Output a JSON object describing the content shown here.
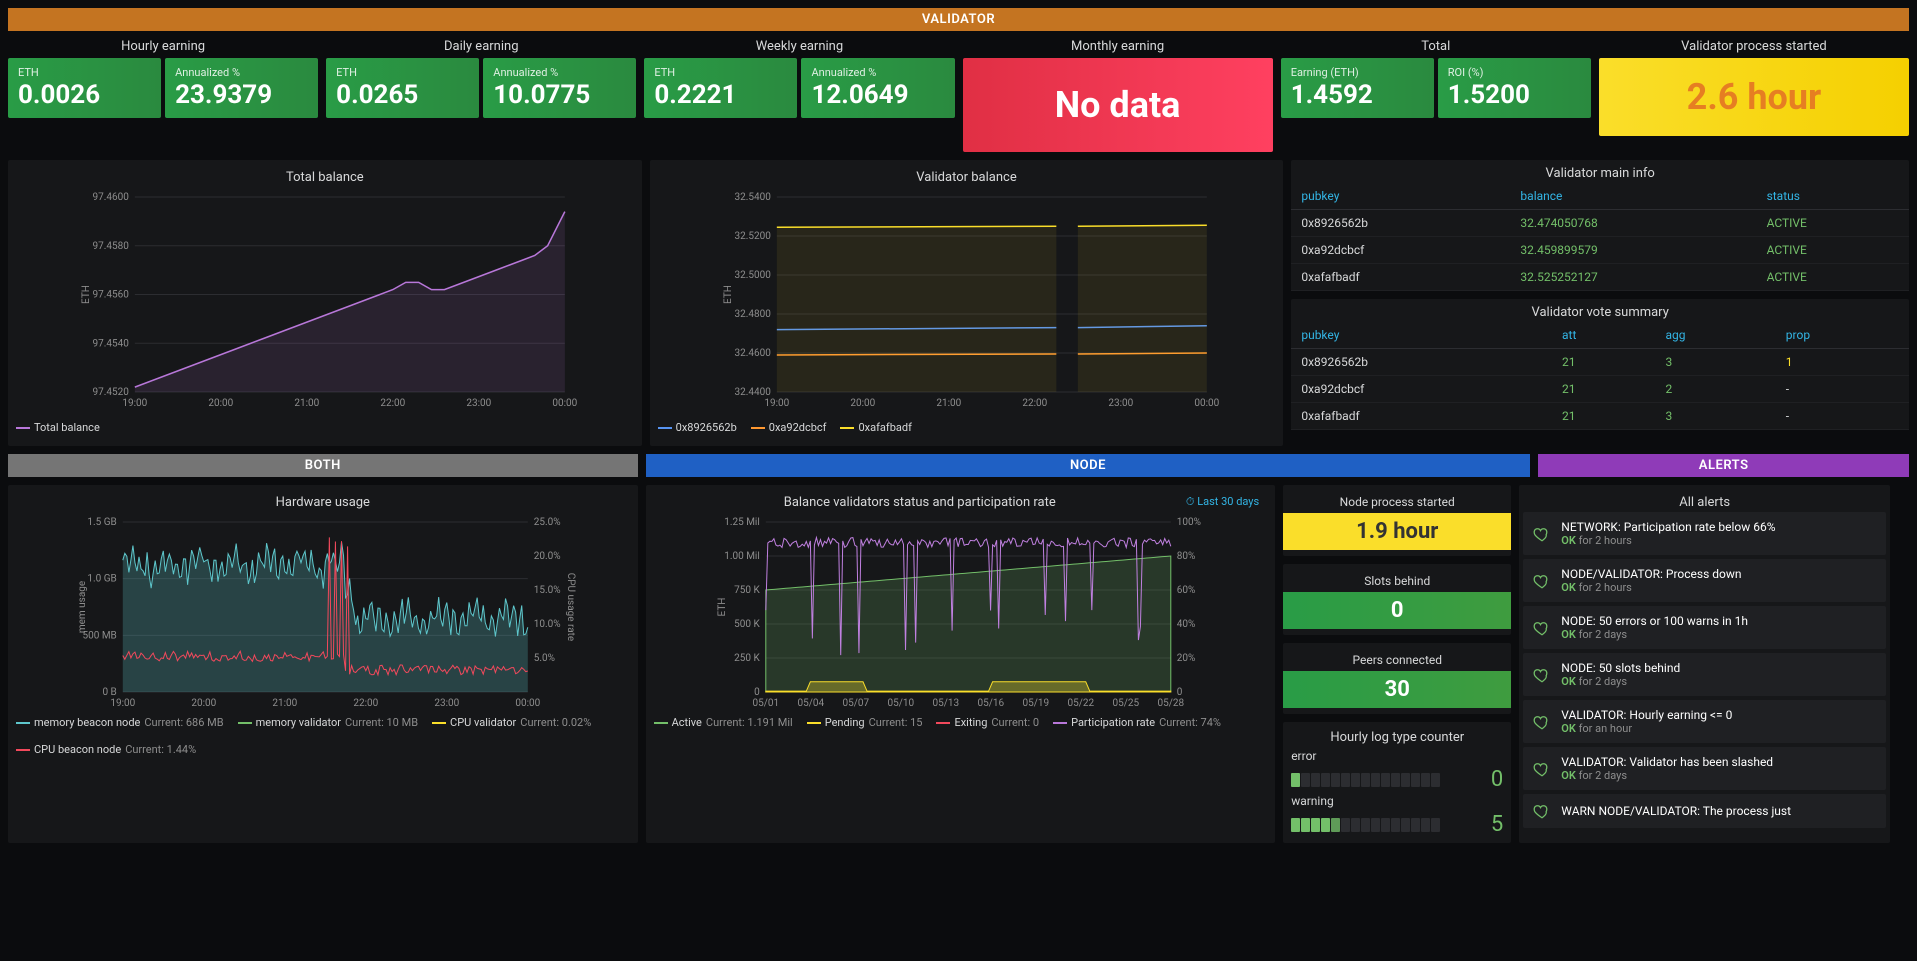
{
  "colors": {
    "green": "#299c46",
    "green_grad_end": "#5cb85c",
    "yellow": "#fade2a",
    "red": "#e02f44",
    "orange_header": "#c47421",
    "gray_header": "#757575",
    "blue_header": "#1f60c4",
    "purple_header": "#8f3bb8",
    "line_purple": "#b877d9",
    "line_blue": "#5794f2",
    "line_orange": "#ff9830",
    "line_yellow": "#fade2a",
    "line_cyan": "#5ec7cc",
    "line_pink": "#f2495c",
    "line_green": "#73bf69",
    "line_yellow2": "#fade2a",
    "grid": "#2c2d31",
    "text_muted": "#8e8e8e"
  },
  "sections": {
    "validator": "VALIDATOR",
    "both": "BOTH",
    "node": "NODE",
    "alerts": "ALERTS"
  },
  "earnings": {
    "hourly": {
      "title": "Hourly earning",
      "eth_label": "ETH",
      "eth": "0.0026",
      "ann_label": "Annualized %",
      "ann": "23.9379"
    },
    "daily": {
      "title": "Daily earning",
      "eth_label": "ETH",
      "eth": "0.0265",
      "ann_label": "Annualized %",
      "ann": "10.0775"
    },
    "weekly": {
      "title": "Weekly earning",
      "eth_label": "ETH",
      "eth": "0.2221",
      "ann_label": "Annualized %",
      "ann": "12.0649"
    },
    "monthly": {
      "title": "Monthly earning",
      "nodata": "No data"
    },
    "total": {
      "title": "Total",
      "eth_label": "Earning (ETH)",
      "eth": "1.4592",
      "roi_label": "ROI (%)",
      "roi": "1.5200"
    },
    "started": {
      "title": "Validator process started",
      "value": "2.6 hour"
    }
  },
  "total_balance": {
    "title": "Total balance",
    "ylabel": "ETH",
    "yticks": [
      "97.4520",
      "97.4540",
      "97.4560",
      "97.4580",
      "97.4600"
    ],
    "xticks": [
      "19:00",
      "20:00",
      "21:00",
      "22:00",
      "23:00",
      "00:00"
    ],
    "legend": "Total balance",
    "line_color": "#b877d9",
    "fill_color": "rgba(184,119,217,0.12)",
    "points": [
      [
        0,
        97.4522
      ],
      [
        3,
        97.4524
      ],
      [
        6,
        97.4526
      ],
      [
        9,
        97.4528
      ],
      [
        12,
        97.453
      ],
      [
        15,
        97.4532
      ],
      [
        18,
        97.4534
      ],
      [
        21,
        97.4536
      ],
      [
        24,
        97.4538
      ],
      [
        27,
        97.454
      ],
      [
        30,
        97.4542
      ],
      [
        33,
        97.4544
      ],
      [
        36,
        97.4546
      ],
      [
        39,
        97.4548
      ],
      [
        42,
        97.455
      ],
      [
        45,
        97.4552
      ],
      [
        48,
        97.4554
      ],
      [
        51,
        97.4556
      ],
      [
        54,
        97.4558
      ],
      [
        57,
        97.456
      ],
      [
        60,
        97.4562
      ],
      [
        63,
        97.4565
      ],
      [
        66,
        97.4565
      ],
      [
        69,
        97.4562
      ],
      [
        72,
        97.4562
      ],
      [
        75,
        97.4564
      ],
      [
        78,
        97.4566
      ],
      [
        81,
        97.4568
      ],
      [
        84,
        97.457
      ],
      [
        87,
        97.4572
      ],
      [
        90,
        97.4574
      ],
      [
        93,
        97.4576
      ],
      [
        96,
        97.458
      ],
      [
        100,
        97.4594
      ]
    ],
    "ymin": 97.452,
    "ymax": 97.46
  },
  "validator_balance": {
    "title": "Validator balance",
    "ylabel": "ETH",
    "yticks": [
      "32.4400",
      "32.4600",
      "32.4800",
      "32.5000",
      "32.5200",
      "32.5400"
    ],
    "xticks": [
      "19:00",
      "20:00",
      "21:00",
      "22:00",
      "23:00",
      "00:00"
    ],
    "ymin": 32.44,
    "ymax": 32.54,
    "series": [
      {
        "name": "0x8926562b",
        "color": "#5794f2",
        "y0": 32.472,
        "y1": 32.474
      },
      {
        "name": "0xa92dcbcf",
        "color": "#ff9830",
        "y0": 32.459,
        "y1": 32.46
      },
      {
        "name": "0xafafbadf",
        "color": "#fade2a",
        "y0": 32.5245,
        "y1": 32.5255
      }
    ],
    "gap_start": 65,
    "gap_end": 70
  },
  "main_info": {
    "title": "Validator main info",
    "cols": [
      "pubkey",
      "balance",
      "status"
    ],
    "rows": [
      [
        "0x8926562b",
        "32.474050768",
        "ACTIVE"
      ],
      [
        "0xa92dcbcf",
        "32.459899579",
        "ACTIVE"
      ],
      [
        "0xafafbadf",
        "32.525252127",
        "ACTIVE"
      ]
    ]
  },
  "vote_summary": {
    "title": "Validator vote summary",
    "cols": [
      "pubkey",
      "att",
      "agg",
      "prop"
    ],
    "rows": [
      [
        "0x8926562b",
        "21",
        "3",
        "1"
      ],
      [
        "0xa92dcbcf",
        "21",
        "2",
        "-"
      ],
      [
        "0xafafbadf",
        "21",
        "3",
        "-"
      ]
    ]
  },
  "hardware": {
    "title": "Hardware usage",
    "ylabel_left": "mem usage",
    "ylabel_right": "CPU usage rate",
    "yticks_left": [
      "0 B",
      "500 MB",
      "1.0 GB",
      "1.5 GB"
    ],
    "yticks_right": [
      "",
      "5.0%",
      "10.0%",
      "15.0%",
      "20.0%",
      "25.0%"
    ],
    "xticks": [
      "19:00",
      "20:00",
      "21:00",
      "22:00",
      "23:00",
      "00:00"
    ],
    "legend": [
      {
        "name": "memory beacon node",
        "current": "Current: 686 MB",
        "color": "#5ec7cc"
      },
      {
        "name": "memory validator",
        "current": "Current: 10 MB",
        "color": "#73bf69"
      },
      {
        "name": "CPU validator",
        "current": "Current: 0.02%",
        "color": "#fade2a"
      },
      {
        "name": "CPU beacon node",
        "current": "Current: 1.44%",
        "color": "#f2495c"
      }
    ]
  },
  "participation": {
    "title": "Balance validators status and participation rate",
    "badge": "Last 30 days",
    "ylabel_left": "ETH",
    "yticks_left": [
      "0",
      "250 K",
      "500 K",
      "750 K",
      "1.00 Mil",
      "1.25 Mil"
    ],
    "yticks_right": [
      "0",
      "20%",
      "40%",
      "60%",
      "80%",
      "100%"
    ],
    "xticks": [
      "05/01",
      "05/04",
      "05/07",
      "05/10",
      "05/13",
      "05/16",
      "05/19",
      "05/22",
      "05/25",
      "05/28"
    ],
    "legend": [
      {
        "name": "Active",
        "current": "Current: 1.191 Mil",
        "color": "#73bf69"
      },
      {
        "name": "Pending",
        "current": "Current: 15",
        "color": "#fade2a"
      },
      {
        "name": "Exiting",
        "current": "Current: 0",
        "color": "#f2495c"
      },
      {
        "name": "Participation rate",
        "current": "Current: 74%",
        "color": "#b877d9"
      }
    ]
  },
  "node_stats": {
    "started": {
      "title": "Node process started",
      "value": "1.9 hour",
      "bg": "#fade2a",
      "fg": "#111"
    },
    "slots": {
      "title": "Slots behind",
      "value": "0",
      "bg": "#299c46",
      "fg": "#fff"
    },
    "peers": {
      "title": "Peers connected",
      "value": "30",
      "bg": "#299c46",
      "fg": "#fff"
    }
  },
  "log_counter": {
    "title": "Hourly log type counter",
    "error": {
      "label": "error",
      "value": "0",
      "color": "#73bf69",
      "bars": [
        1,
        0,
        0,
        0,
        0,
        0,
        0,
        0,
        0,
        0,
        0,
        0,
        0,
        0,
        0
      ]
    },
    "warning": {
      "label": "warning",
      "value": "5",
      "color": "#73bf69",
      "bars": [
        1,
        1,
        1,
        1,
        0.7,
        0,
        0,
        0,
        0,
        0,
        0,
        0,
        0,
        0,
        0
      ]
    }
  },
  "alerts": {
    "title": "All alerts",
    "items": [
      {
        "text": "NETWORK: Participation rate below 66%",
        "ok": "OK",
        "sub": "for 2 hours"
      },
      {
        "text": "NODE/VALIDATOR: Process down",
        "ok": "OK",
        "sub": "for 2 hours"
      },
      {
        "text": "NODE: 50 errors or 100 warns in 1h",
        "ok": "OK",
        "sub": "for 2 days"
      },
      {
        "text": "NODE: 50 slots behind",
        "ok": "OK",
        "sub": "for 2 days"
      },
      {
        "text": "VALIDATOR: Hourly earning <= 0",
        "ok": "OK",
        "sub": "for an hour"
      },
      {
        "text": "VALIDATOR: Validator has been slashed",
        "ok": "OK",
        "sub": "for 2 days"
      },
      {
        "text": "WARN NODE/VALIDATOR: The process just",
        "ok": "",
        "sub": ""
      }
    ]
  }
}
